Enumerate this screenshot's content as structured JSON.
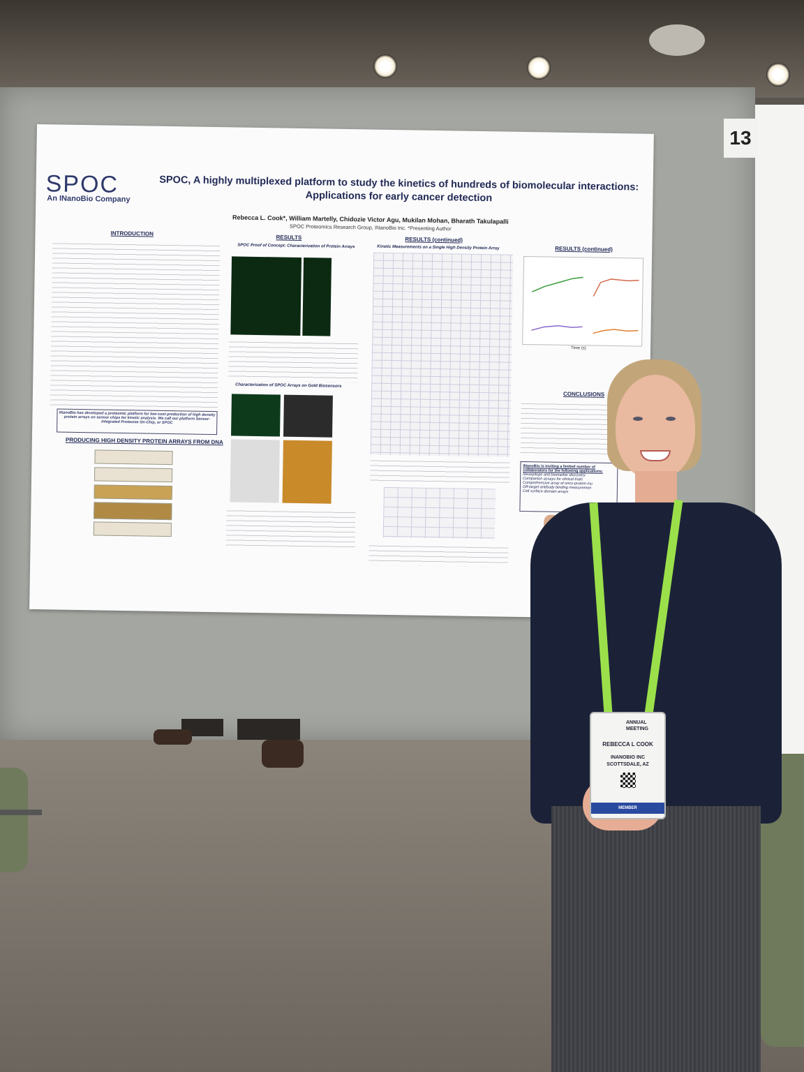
{
  "booth_number": "13",
  "poster": {
    "logo": "SPOC",
    "logo_sub": "An INanoBio Company",
    "title": "SPOC, A highly multiplexed platform to study the kinetics of hundreds of biomolecular interactions: Applications for early cancer detection",
    "authors": "Rebecca L. Cook*, William Martelly, Chidozie Victor Agu, Mukilan Mohan, Bharath Takulapalli",
    "affiliation": "SPOC Proteomics Research Group, INanoBio Inc.   *Presenting Author",
    "sections": {
      "introduction": "INTRODUCTION",
      "results": "RESULTS",
      "results_continued": "RESULTS (continued)",
      "results_continued_2": "RESULTS (continued)",
      "conclusions": "CONCLUSIONS",
      "producing": "PRODUCING HIGH DENSITY PROTEIN ARRAYS FROM DNA",
      "proof_of_concept": "SPOC Proof of Concept: Characterization of Protein Arrays",
      "gold_biosensors": "Characterization of SPOC Arrays on Gold Biosensors",
      "kinetic_title": "Kinetic Measurements on a Single High Density Protein Array"
    },
    "callout": "INanoBio has developed a proteomic platform for low-cost production of high density protein arrays on sensor chips for kinetic analysis. We call our platform Sensor-Integrated Proteome On-Chip, or SPOC",
    "applications_heading": "INanoBio is inviting a limited number of collaborators for the following applications:",
    "applications": [
      "Neoepitope and biomarker discovery",
      "Companion assays for clinical trials",
      "Comprehensive array of onco-protein mu",
      "Off-target antibody binding measuremen",
      "Cell surface domain arrays"
    ],
    "x_axis_label": "Time (s)"
  },
  "badge": {
    "event_line1": "ANNUAL",
    "event_line2": "MEETING",
    "name": "REBECCA L COOK",
    "company": "INANOBIO INC",
    "location": "SCOTTSDALE, AZ",
    "type": "MEMBER"
  },
  "colors": {
    "board": "#a4a6a1",
    "poster_title": "#222a55",
    "sweater": "#1b2238",
    "lanyard": "#9be04a"
  }
}
